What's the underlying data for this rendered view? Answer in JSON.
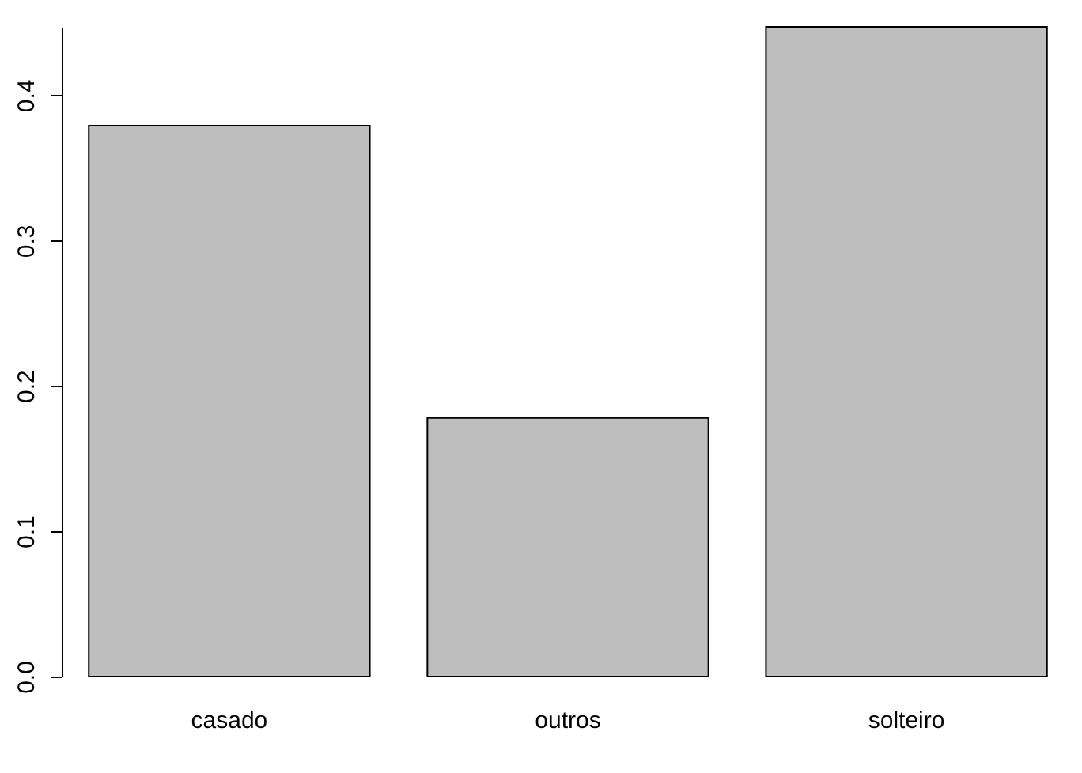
{
  "chart_data": {
    "type": "bar",
    "categories": [
      "casado",
      "outros",
      "solteiro"
    ],
    "values": [
      0.379,
      0.178,
      0.447
    ],
    "color": "#bebebe",
    "ylim": [
      0,
      0.447
    ],
    "yticks": [
      {
        "value": 0,
        "label": "0.0"
      },
      0.1,
      0.2,
      0.3,
      0.4
    ],
    "grid": false
  }
}
